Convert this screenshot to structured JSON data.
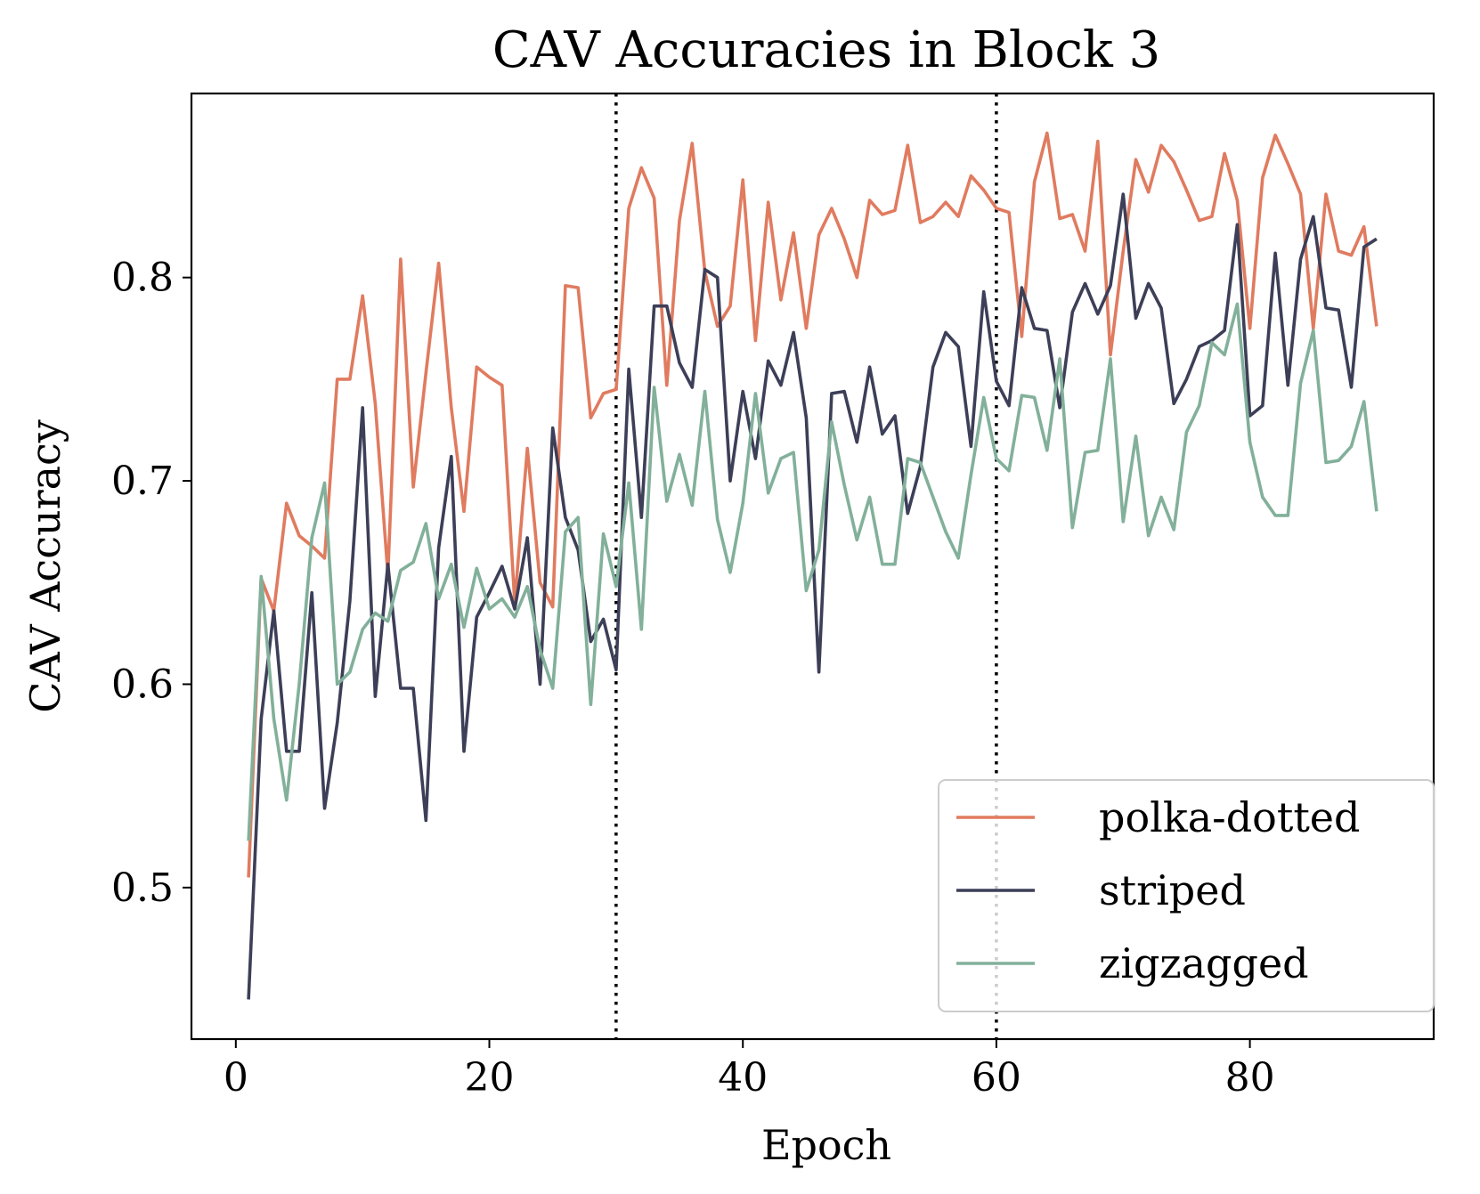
{
  "chart_data": {
    "type": "line",
    "title": "CAV Accuracies in Block 3",
    "xlabel": "Epoch",
    "ylabel": "CAV Accuracy",
    "xlim": [
      -3.5,
      94.5
    ],
    "ylim": [
      0.4255,
      0.8905
    ],
    "xticks": [
      0,
      20,
      40,
      60,
      80
    ],
    "xtick_labels": [
      "0",
      "20",
      "40",
      "60",
      "80"
    ],
    "yticks": [
      0.5,
      0.6,
      0.7,
      0.8
    ],
    "ytick_labels": [
      "0.5",
      "0.6",
      "0.7",
      "0.8"
    ],
    "vlines": [
      30,
      60
    ],
    "vline_style": "dotted",
    "legend_position": "lower-right",
    "grid": false,
    "x": [
      1,
      2,
      3,
      4,
      5,
      6,
      7,
      8,
      9,
      10,
      11,
      12,
      13,
      14,
      15,
      16,
      17,
      18,
      19,
      20,
      21,
      22,
      23,
      24,
      25,
      26,
      27,
      28,
      29,
      30,
      31,
      32,
      33,
      34,
      35,
      36,
      37,
      38,
      39,
      40,
      41,
      42,
      43,
      44,
      45,
      46,
      47,
      48,
      49,
      50,
      51,
      52,
      53,
      54,
      55,
      56,
      57,
      58,
      59,
      60,
      61,
      62,
      63,
      64,
      65,
      66,
      67,
      68,
      69,
      70,
      71,
      72,
      73,
      74,
      75,
      76,
      77,
      78,
      79,
      80,
      81,
      82,
      83,
      84,
      85,
      86,
      87,
      88,
      89,
      90
    ],
    "series": [
      {
        "name": "polka-dotted",
        "color": "#e07b5f",
        "values": [
          0.505,
          0.652,
          0.636,
          0.689,
          0.673,
          0.668,
          0.662,
          0.75,
          0.75,
          0.791,
          0.738,
          0.654,
          0.809,
          0.697,
          0.753,
          0.807,
          0.736,
          0.685,
          0.756,
          0.751,
          0.747,
          0.64,
          0.716,
          0.65,
          0.638,
          0.796,
          0.795,
          0.731,
          0.743,
          0.745,
          0.834,
          0.854,
          0.839,
          0.747,
          0.828,
          0.866,
          0.803,
          0.776,
          0.786,
          0.848,
          0.769,
          0.837,
          0.789,
          0.822,
          0.775,
          0.821,
          0.834,
          0.819,
          0.8,
          0.838,
          0.831,
          0.833,
          0.865,
          0.827,
          0.83,
          0.837,
          0.83,
          0.85,
          0.843,
          0.834,
          0.832,
          0.771,
          0.847,
          0.871,
          0.829,
          0.831,
          0.813,
          0.867,
          0.762,
          0.813,
          0.858,
          0.842,
          0.865,
          0.857,
          0.843,
          0.828,
          0.83,
          0.861,
          0.838,
          0.775,
          0.849,
          0.87,
          0.856,
          0.841,
          0.775,
          0.841,
          0.813,
          0.811,
          0.825,
          0.776
        ]
      },
      {
        "name": "striped",
        "color": "#3d3f58",
        "values": [
          0.445,
          0.583,
          0.636,
          0.567,
          0.567,
          0.645,
          0.539,
          0.581,
          0.641,
          0.736,
          0.594,
          0.659,
          0.598,
          0.598,
          0.533,
          0.667,
          0.712,
          0.567,
          0.633,
          0.645,
          0.658,
          0.637,
          0.672,
          0.6,
          0.726,
          0.682,
          0.666,
          0.621,
          0.632,
          0.607,
          0.755,
          0.682,
          0.786,
          0.786,
          0.758,
          0.746,
          0.804,
          0.8,
          0.7,
          0.744,
          0.711,
          0.759,
          0.747,
          0.773,
          0.731,
          0.606,
          0.743,
          0.744,
          0.719,
          0.756,
          0.723,
          0.732,
          0.684,
          0.707,
          0.756,
          0.773,
          0.766,
          0.717,
          0.793,
          0.749,
          0.737,
          0.795,
          0.775,
          0.774,
          0.736,
          0.783,
          0.797,
          0.782,
          0.796,
          0.841,
          0.78,
          0.797,
          0.785,
          0.738,
          0.75,
          0.766,
          0.769,
          0.774,
          0.826,
          0.732,
          0.737,
          0.812,
          0.747,
          0.809,
          0.83,
          0.785,
          0.784,
          0.746,
          0.815,
          0.819
        ]
      },
      {
        "name": "zigzagged",
        "color": "#82b09a",
        "values": [
          0.523,
          0.653,
          0.583,
          0.543,
          0.6,
          0.672,
          0.699,
          0.6,
          0.606,
          0.627,
          0.635,
          0.631,
          0.656,
          0.66,
          0.679,
          0.642,
          0.659,
          0.628,
          0.657,
          0.637,
          0.642,
          0.633,
          0.648,
          0.617,
          0.598,
          0.675,
          0.682,
          0.59,
          0.674,
          0.648,
          0.699,
          0.627,
          0.746,
          0.69,
          0.713,
          0.688,
          0.744,
          0.681,
          0.655,
          0.689,
          0.743,
          0.694,
          0.711,
          0.714,
          0.646,
          0.666,
          0.729,
          0.698,
          0.671,
          0.692,
          0.659,
          0.659,
          0.711,
          0.709,
          0.692,
          0.675,
          0.662,
          0.703,
          0.741,
          0.711,
          0.705,
          0.742,
          0.741,
          0.715,
          0.76,
          0.677,
          0.714,
          0.715,
          0.76,
          0.68,
          0.722,
          0.673,
          0.692,
          0.676,
          0.724,
          0.737,
          0.768,
          0.762,
          0.787,
          0.719,
          0.692,
          0.683,
          0.683,
          0.748,
          0.774,
          0.709,
          0.71,
          0.717,
          0.739,
          0.685
        ]
      }
    ]
  }
}
